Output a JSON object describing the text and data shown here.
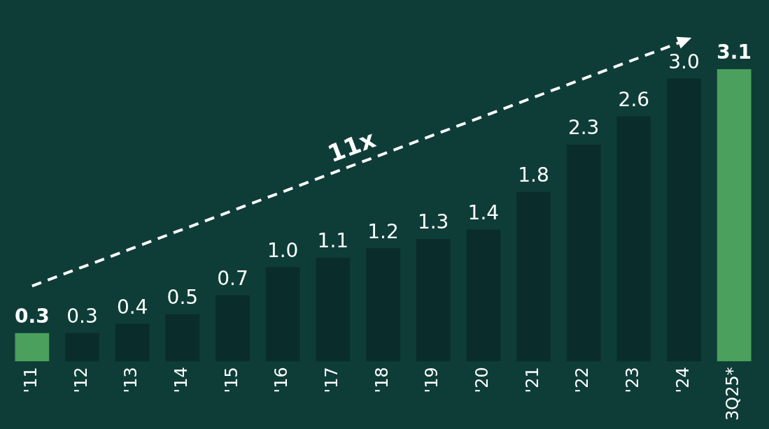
{
  "chart_data": {
    "type": "bar",
    "categories": [
      "'11",
      "'12",
      "'13",
      "'14",
      "'15",
      "'16",
      "'17",
      "'18",
      "'19",
      "'20",
      "'21",
      "'22",
      "'23",
      "'24",
      "3Q25*"
    ],
    "series": [
      {
        "values": [
          0.3,
          0.3,
          0.4,
          0.5,
          0.7,
          1.0,
          1.1,
          1.2,
          1.3,
          1.4,
          1.8,
          2.3,
          2.6,
          3.0,
          3.1
        ],
        "value_labels": [
          "0.3",
          "0.3",
          "0.4",
          "0.5",
          "0.7",
          "1.0",
          "1.1",
          "1.2",
          "1.3",
          "1.4",
          "1.8",
          "2.3",
          "2.6",
          "3.0",
          "3.1"
        ],
        "colors": [
          "#4aa05c",
          "#0a2d2b",
          "#0a2d2b",
          "#0a2d2b",
          "#0a2d2b",
          "#0a2d2b",
          "#0a2d2b",
          "#0a2d2b",
          "#0a2d2b",
          "#0a2d2b",
          "#0a2d2b",
          "#0a2d2b",
          "#0a2d2b",
          "#0a2d2b",
          "#4aa05c"
        ]
      },
      {
        "type": "line",
        "name": "11x",
        "x": [
          "'11",
          "'24"
        ],
        "values": [
          0.8,
          3.4
        ],
        "color": "#ffffff",
        "line_style": "dashed"
      }
    ],
    "grid": false,
    "legend": false
  }
}
